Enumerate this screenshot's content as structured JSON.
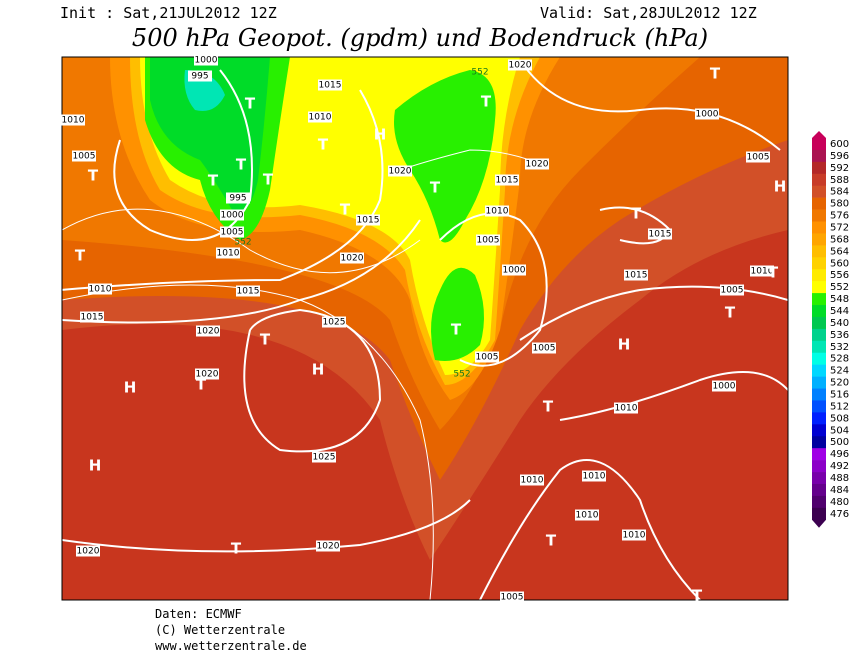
{
  "header": {
    "init": "Init : Sat,21JUL2012 12Z",
    "valid": "Valid: Sat,28JUL2012 12Z",
    "title": "500 hPa Geopot. (gpdm) und Bodendruck (hPa)"
  },
  "colorbar": {
    "labels": [
      600,
      596,
      592,
      588,
      584,
      580,
      576,
      572,
      568,
      564,
      560,
      556,
      552,
      548,
      544,
      540,
      536,
      532,
      528,
      524,
      520,
      516,
      512,
      508,
      504,
      500,
      496,
      492,
      488,
      484,
      480,
      476
    ],
    "colors": [
      "#c8005a",
      "#aa1450",
      "#b42828",
      "#c83c28",
      "#d25028",
      "#e66400",
      "#f07800",
      "#ff9100",
      "#ffa500",
      "#ffbe00",
      "#ffd200",
      "#ffeb00",
      "#ffff00",
      "#28f000",
      "#00dc28",
      "#00c850",
      "#00d28c",
      "#00e6b4",
      "#00ffe6",
      "#00d8ff",
      "#00b0ff",
      "#0080ff",
      "#0050ff",
      "#0020ff",
      "#0000d2",
      "#0000a0",
      "#a000e6",
      "#8c00c8",
      "#7800aa",
      "#64008c",
      "#50006e",
      "#3c0050"
    ]
  },
  "isobar_labels": [
    "1000",
    "995",
    "1015",
    "1010",
    "1010",
    "1005",
    "995",
    "1000",
    "1005",
    "1010",
    "552",
    "1015",
    "1020",
    "1015",
    "1010",
    "1015",
    "1020",
    "1025",
    "1020",
    "1025",
    "1020",
    "1020",
    "1005",
    "1020",
    "1015",
    "1020",
    "1010",
    "1005",
    "1000",
    "1005",
    "1005",
    "1015",
    "1015",
    "1005",
    "1000",
    "1020",
    "552",
    "1010",
    "1005",
    "1000",
    "1010",
    "1010",
    "1010",
    "1010",
    "1010",
    "552"
  ],
  "pressure_centers": [
    "T",
    "T",
    "H",
    "T",
    "T",
    "T",
    "T",
    "T",
    "T",
    "T",
    "T",
    "H",
    "T",
    "T",
    "T",
    "H",
    "T",
    "H",
    "T",
    "H",
    "H",
    "T",
    "T",
    "T",
    "T",
    "T",
    "T"
  ],
  "footer": {
    "data": "Daten: ECMWF",
    "copyright": "(C) Wetterzentrale",
    "url": "www.wetterzentrale.de"
  }
}
